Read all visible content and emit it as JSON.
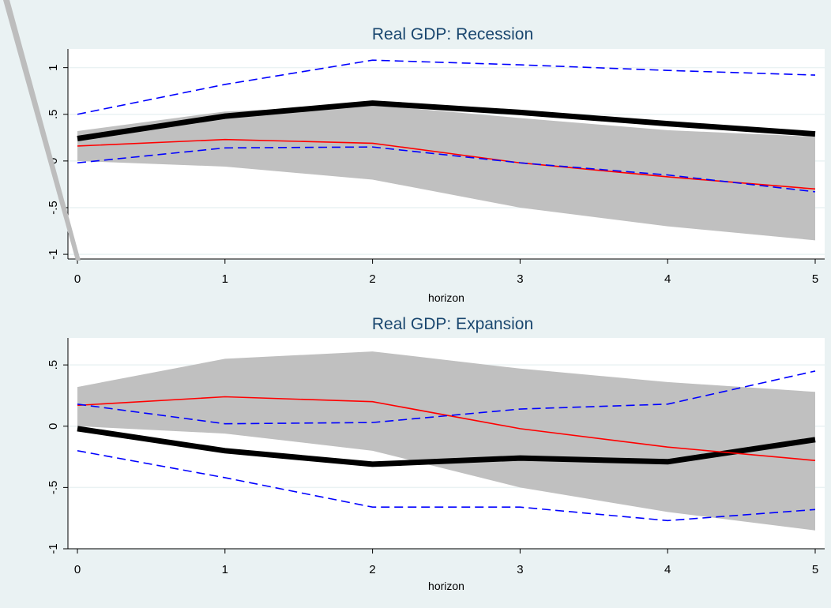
{
  "colors": {
    "background": "#eaf2f3",
    "plot_area": "#ffffff",
    "gridline": "#eaf2f3",
    "band": "#c0c0c0",
    "title": "#1a476f",
    "black_line": "#000000",
    "red_line": "#ff0000",
    "blue_dash": "#0000ff"
  },
  "chart_data": [
    {
      "type": "line",
      "title": "Real GDP: Recession",
      "xlabel": "horizon",
      "ylabel": "",
      "x": [
        0,
        1,
        2,
        3,
        4,
        5
      ],
      "xlim": [
        0,
        5
      ],
      "ylim": [
        -1.05,
        1.2
      ],
      "xticks": [
        "0",
        "1",
        "2",
        "3",
        "4",
        "5"
      ],
      "yticks": [
        "1",
        ".5",
        "0",
        "-.5",
        "-1"
      ],
      "ytick_values": [
        1,
        0.5,
        0,
        -0.5,
        -1
      ],
      "grid": true,
      "band": {
        "upper": [
          0.32,
          0.53,
          0.6,
          0.46,
          0.33,
          0.26
        ],
        "lower": [
          0.0,
          -0.06,
          -0.2,
          -0.5,
          -0.7,
          -0.85
        ]
      },
      "series": [
        {
          "style": "thick-solid",
          "color": "#000000",
          "values": [
            0.24,
            0.48,
            0.62,
            0.52,
            0.4,
            0.29
          ]
        },
        {
          "style": "thin-solid",
          "color": "#ff0000",
          "values": [
            0.16,
            0.23,
            0.19,
            -0.02,
            -0.17,
            -0.3
          ]
        },
        {
          "style": "dashed",
          "color": "#0000ff",
          "values": [
            0.5,
            0.82,
            1.08,
            1.03,
            0.97,
            0.92
          ]
        },
        {
          "style": "dashed",
          "color": "#0000ff",
          "values": [
            -0.02,
            0.14,
            0.15,
            -0.02,
            -0.15,
            -0.33
          ]
        }
      ]
    },
    {
      "type": "line",
      "title": "Real GDP: Expansion",
      "xlabel": "horizon",
      "ylabel": "",
      "x": [
        0,
        1,
        2,
        3,
        4,
        5
      ],
      "xlim": [
        0,
        5
      ],
      "ylim": [
        -1.0,
        0.72
      ],
      "xticks": [
        "0",
        "1",
        "2",
        "3",
        "4",
        "5"
      ],
      "yticks": [
        ".5",
        "0",
        "-.5",
        "-1"
      ],
      "ytick_values": [
        0.5,
        0,
        -0.5,
        -1
      ],
      "grid": true,
      "band": {
        "upper": [
          0.32,
          0.55,
          0.61,
          0.47,
          0.36,
          0.28
        ],
        "lower": [
          0.0,
          -0.06,
          -0.2,
          -0.5,
          -0.7,
          -0.85
        ]
      },
      "series": [
        {
          "style": "thick-solid",
          "color": "#000000",
          "values": [
            -0.02,
            -0.2,
            -0.31,
            -0.26,
            -0.29,
            -0.11
          ]
        },
        {
          "style": "thin-solid",
          "color": "#ff0000",
          "values": [
            0.17,
            0.24,
            0.2,
            -0.02,
            -0.17,
            -0.28
          ]
        },
        {
          "style": "dashed",
          "color": "#0000ff",
          "values": [
            0.18,
            0.02,
            0.03,
            0.14,
            0.18,
            0.45
          ]
        },
        {
          "style": "dashed",
          "color": "#0000ff",
          "values": [
            -0.2,
            -0.42,
            -0.66,
            -0.66,
            -0.77,
            -0.68
          ]
        }
      ]
    }
  ]
}
